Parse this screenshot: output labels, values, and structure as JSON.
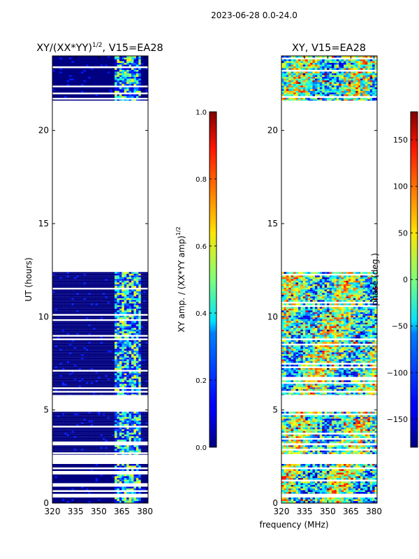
{
  "figure_title": "2023-06-28 0.0-24.0",
  "shared_xlabel": "frequency (MHz)",
  "chart_data": [
    {
      "type": "heatmap",
      "title_main": "XY/(XX*YY)",
      "title_sup": "1/2",
      "title_tail": ", V15=EA28",
      "xlabel": "",
      "ylabel": "UT (hours)",
      "xlim": [
        320,
        382
      ],
      "ylim": [
        0,
        24
      ],
      "xticks": [
        320,
        335,
        350,
        365,
        380
      ],
      "yticks": [
        0,
        5,
        10,
        15,
        20
      ],
      "colorbar": {
        "label_main": "XY amp. / (XX*YY amp)",
        "label_sup": "1/2",
        "range": [
          0.0,
          1.0
        ],
        "ticks": [
          "0.0",
          "0.2",
          "0.4",
          "0.6",
          "0.8",
          "1.0"
        ],
        "tick_values": [
          0.0,
          0.2,
          0.4,
          0.6,
          0.8,
          1.0
        ],
        "colormap": "jet"
      },
      "data_blocks_ut": [
        [
          0.0,
          0.3
        ],
        [
          0.5,
          2.1
        ],
        [
          2.6,
          3.1
        ],
        [
          3.2,
          4.9
        ],
        [
          5.8,
          12.4
        ],
        [
          21.6,
          24.0
        ]
      ],
      "high_value_band_mhz": [
        360,
        378
      ],
      "background_value": 0.0
    },
    {
      "type": "heatmap",
      "title_main": "XY",
      "title_sup": "",
      "title_tail": ", V15=EA28",
      "xlabel": "frequency (MHz)",
      "ylabel": "",
      "xlim": [
        320,
        382
      ],
      "ylim": [
        0,
        24
      ],
      "xticks": [
        320,
        335,
        350,
        365,
        380
      ],
      "yticks": [
        0,
        5,
        10,
        15,
        20
      ],
      "colorbar": {
        "label_main": "phase (deg.)",
        "label_sup": "",
        "range": [
          -180,
          180
        ],
        "ticks": [
          "150",
          "100",
          "50",
          "0",
          "−50",
          "−100",
          "−150"
        ],
        "tick_values": [
          150,
          100,
          50,
          0,
          -50,
          -100,
          -150
        ],
        "colormap": "jet"
      },
      "data_blocks_ut": [
        [
          0.0,
          0.3
        ],
        [
          0.5,
          2.1
        ],
        [
          2.6,
          3.1
        ],
        [
          3.2,
          4.9
        ],
        [
          5.8,
          12.4
        ],
        [
          21.6,
          24.0
        ]
      ]
    }
  ],
  "colors": {
    "background": "#ffffff",
    "axis": "#000000",
    "colormap": "jet"
  }
}
